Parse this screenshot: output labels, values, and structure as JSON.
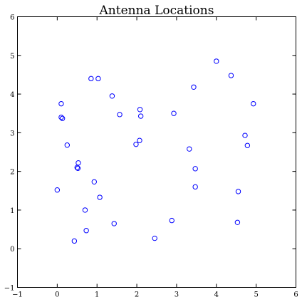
{
  "chart_data": {
    "type": "scatter",
    "title": "Antenna Locations",
    "xlabel": "",
    "ylabel": "",
    "xlim": [
      -1,
      6
    ],
    "ylim": [
      -1,
      6
    ],
    "xticks": [
      -1,
      0,
      1,
      2,
      3,
      4,
      5,
      6
    ],
    "yticks": [
      -1,
      0,
      1,
      2,
      3,
      4,
      5,
      6
    ],
    "grid": false,
    "marker_color": "#0000ff",
    "series": [
      {
        "name": "",
        "x": [
          0.0,
          0.1,
          0.1,
          0.13,
          0.25,
          0.5,
          0.52,
          0.53,
          0.43,
          0.7,
          0.73,
          0.85,
          0.93,
          1.03,
          1.07,
          1.38,
          1.43,
          1.57,
          1.98,
          2.07,
          2.08,
          2.1,
          2.45,
          2.88,
          2.93,
          3.32,
          3.43,
          3.47,
          3.47,
          4.0,
          4.37,
          4.53,
          4.55,
          4.72,
          4.78,
          4.93
        ],
        "y": [
          1.52,
          3.75,
          3.4,
          3.37,
          2.68,
          2.1,
          2.08,
          2.22,
          0.2,
          1.0,
          0.47,
          4.4,
          1.73,
          4.4,
          1.33,
          3.95,
          0.65,
          3.47,
          2.7,
          2.8,
          3.6,
          3.43,
          0.27,
          0.73,
          3.5,
          2.58,
          4.18,
          2.07,
          1.6,
          4.85,
          4.48,
          0.68,
          1.48,
          2.93,
          2.67,
          3.75
        ]
      }
    ]
  }
}
